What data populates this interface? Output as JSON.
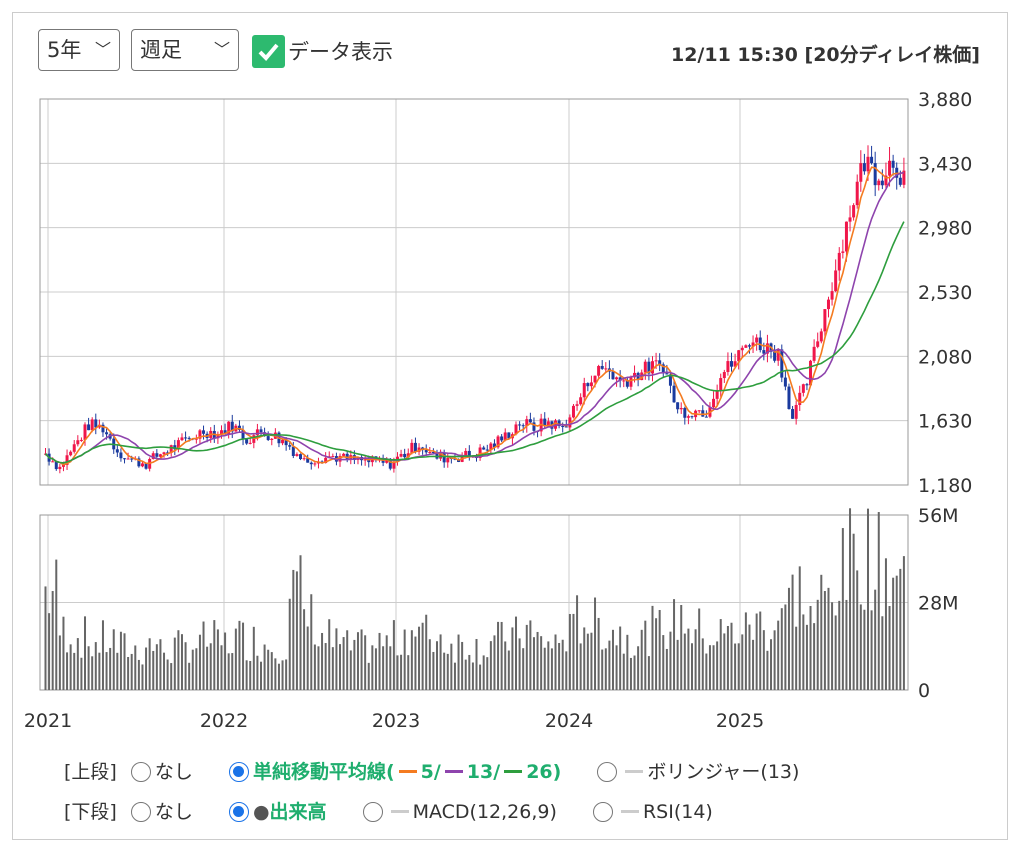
{
  "controls": {
    "period": "5年",
    "interval": "週足",
    "data_toggle": "データ表示",
    "timestamp": "12/11 15:30 [20分ディレイ株価]"
  },
  "legend": {
    "upper_label": "[上段]",
    "lower_label": "[下段]",
    "none": "なし",
    "sma_label": "単純移動平均線(",
    "sma5": "5/",
    "sma13": "13/",
    "sma26": "26)",
    "bollinger": "ボリンジャー(13)",
    "volume": "出来高",
    "macd": "MACD(12,26,9)",
    "rsi": "RSI(14)",
    "colors": {
      "sma5": "#f47b20",
      "sma13": "#8e44ad",
      "sma26": "#2e9e3e"
    }
  },
  "chart_data": {
    "type": "candlestick",
    "granularity": "monthly approximation of weekly candles",
    "start": "2020-12",
    "closes": [
      1400,
      1300,
      1450,
      1600,
      1580,
      1420,
      1350,
      1330,
      1400,
      1450,
      1500,
      1560,
      1540,
      1600,
      1500,
      1550,
      1520,
      1450,
      1350,
      1370,
      1380,
      1360,
      1350,
      1340,
      1330,
      1400,
      1470,
      1380,
      1370,
      1380,
      1400,
      1450,
      1520,
      1620,
      1580,
      1620,
      1580,
      1750,
      1950,
      2000,
      1900,
      1950,
      2000,
      2020,
      1700,
      1700,
      1700,
      1950,
      2050,
      2200,
      2150,
      2100,
      1650,
      1900,
      2300,
      2700,
      3100,
      3450,
      3350,
      3450,
      3300
    ],
    "volumes_m": [
      30,
      18,
      16,
      14,
      15,
      13,
      12,
      14,
      12,
      13,
      14,
      15,
      14,
      16,
      15,
      14,
      14,
      30,
      22,
      16,
      14,
      13,
      13,
      14,
      15,
      18,
      17,
      16,
      14,
      14,
      13,
      15,
      16,
      18,
      15,
      14,
      17,
      22,
      20,
      18,
      17,
      16,
      18,
      20,
      22,
      18,
      16,
      17,
      18,
      20,
      19,
      25,
      30,
      22,
      28,
      35,
      40,
      42,
      38,
      35,
      30
    ],
    "price_axis": {
      "ticks": [
        "3,880",
        "3,430",
        "2,980",
        "2,530",
        "2,080",
        "1,630",
        "1,180"
      ],
      "range": [
        1180,
        3880
      ]
    },
    "volume_axis": {
      "ticks": [
        "56M",
        "28M",
        "0"
      ],
      "range": [
        0,
        56
      ]
    },
    "x_ticks": [
      "2021",
      "2022",
      "2023",
      "2024",
      "2025"
    ],
    "colors": {
      "up": "#f0164a",
      "down": "#1a3a9e",
      "volume": "#666666"
    }
  }
}
